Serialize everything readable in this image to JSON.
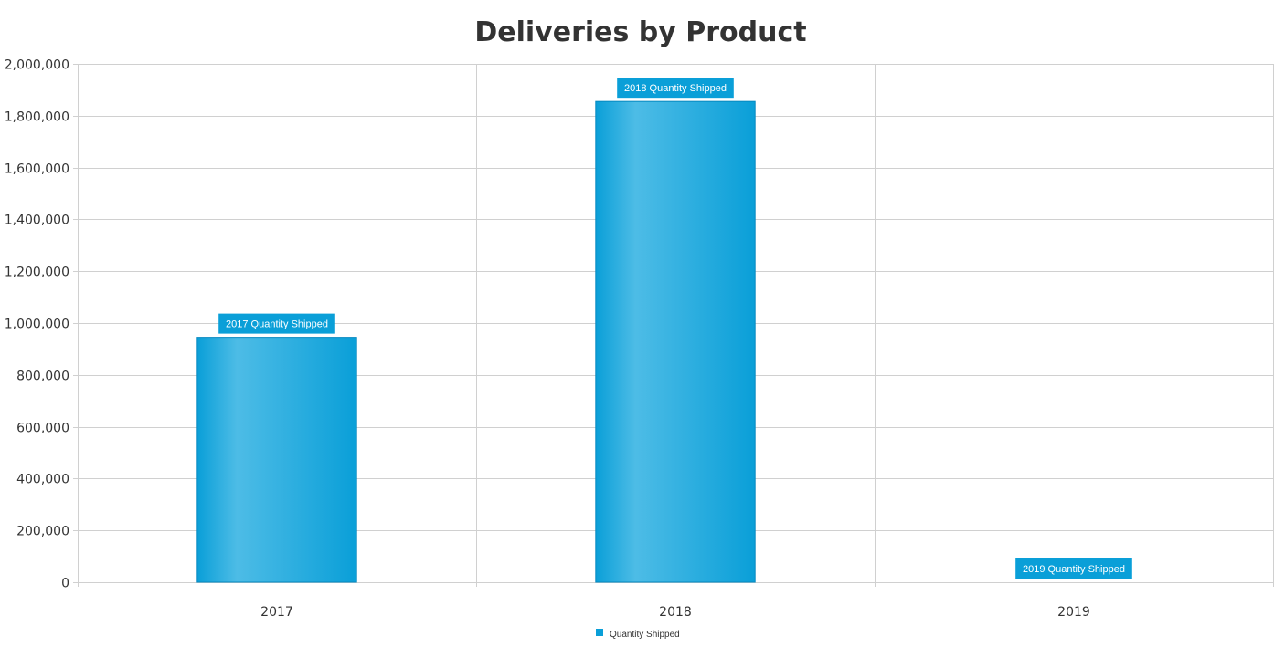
{
  "chart_data": {
    "type": "bar",
    "title": "Deliveries by Product",
    "xlabel": "",
    "ylabel": "",
    "categories": [
      "2017",
      "2018",
      "2019"
    ],
    "series": [
      {
        "name": "Quantity Shipped",
        "values": [
          945000,
          1855000,
          0
        ],
        "data_labels": [
          "2017 Quantity Shipped",
          "2018 Quantity Shipped",
          "2019 Quantity Shipped"
        ]
      }
    ],
    "ylim": [
      0,
      2000000
    ],
    "yticks": [
      0,
      200000,
      400000,
      600000,
      800000,
      1000000,
      1200000,
      1400000,
      1600000,
      1800000,
      2000000
    ],
    "ytick_labels": [
      "0",
      "200,000",
      "400,000",
      "600,000",
      "800,000",
      "1,000,000",
      "1,200,000",
      "1,400,000",
      "1,600,000",
      "1,800,000",
      "2,000,000"
    ],
    "grid": true,
    "legend": {
      "position": "bottom-center",
      "entries": [
        "Quantity Shipped"
      ]
    },
    "colors": {
      "bar": "#0a9fd8",
      "bar_highlight": "#4dbce6",
      "bar_border": "#0589c0",
      "data_label_bg": "#0a9fd8",
      "grid": "#d0d0d0",
      "text": "#333333"
    }
  }
}
